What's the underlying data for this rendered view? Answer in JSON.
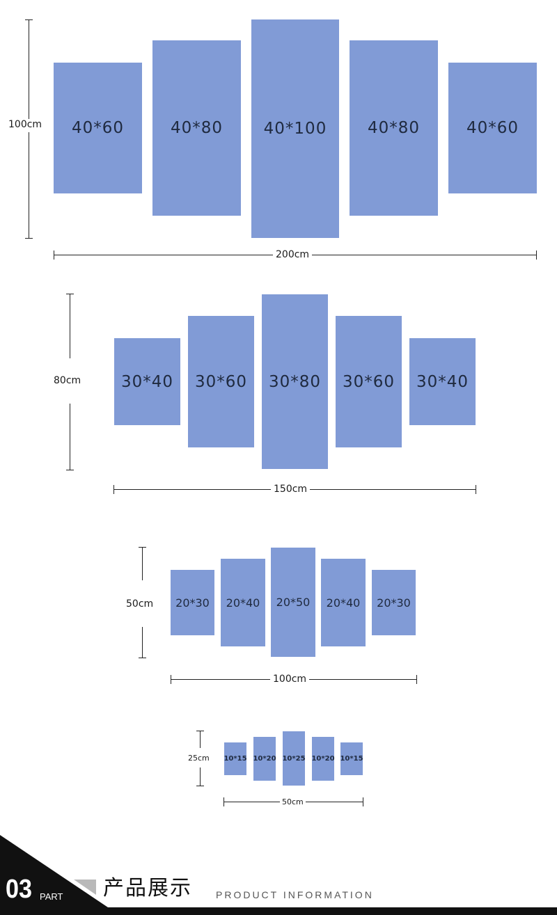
{
  "size_sets": [
    {
      "height_label": "100cm",
      "width_label": "200cm",
      "panels": [
        "40*60",
        "40*80",
        "40*100",
        "40*80",
        "40*60"
      ]
    },
    {
      "height_label": "80cm",
      "width_label": "150cm",
      "panels": [
        "30*40",
        "30*60",
        "30*80",
        "30*60",
        "30*40"
      ]
    },
    {
      "height_label": "50cm",
      "width_label": "100cm",
      "panels": [
        "20*30",
        "20*40",
        "20*50",
        "20*40",
        "20*30"
      ]
    },
    {
      "height_label": "25cm",
      "width_label": "50cm",
      "panels": [
        "10*15",
        "10*20",
        "10*25",
        "10*20",
        "10*15"
      ]
    }
  ],
  "footer": {
    "number": "03",
    "part": "PART",
    "title_cn": "产品展示",
    "title_en": "PRODUCT INFORMATION"
  },
  "colors": {
    "panel": "#819bd6",
    "line": "#222222"
  }
}
